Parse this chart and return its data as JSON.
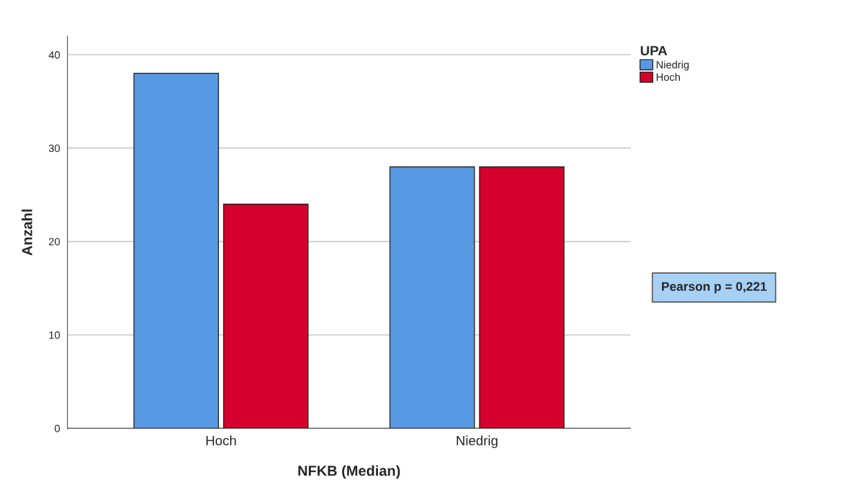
{
  "chart_data": {
    "type": "bar",
    "xlabel": "NFKB (Median)",
    "ylabel": "Anzahl",
    "legend_title": "UPA",
    "categories": [
      "Hoch",
      "Niedrig"
    ],
    "series": [
      {
        "name": "Niedrig",
        "color": "#5899e3",
        "values": [
          38,
          28
        ]
      },
      {
        "name": "Hoch",
        "color": "#d5002c",
        "values": [
          24,
          28
        ]
      }
    ],
    "ylim": [
      0,
      42
    ],
    "yticks": [
      0,
      10,
      20,
      30,
      40
    ],
    "grid": "y",
    "legend": "top right",
    "annotations": [
      "Pearson p = 0,221"
    ]
  }
}
